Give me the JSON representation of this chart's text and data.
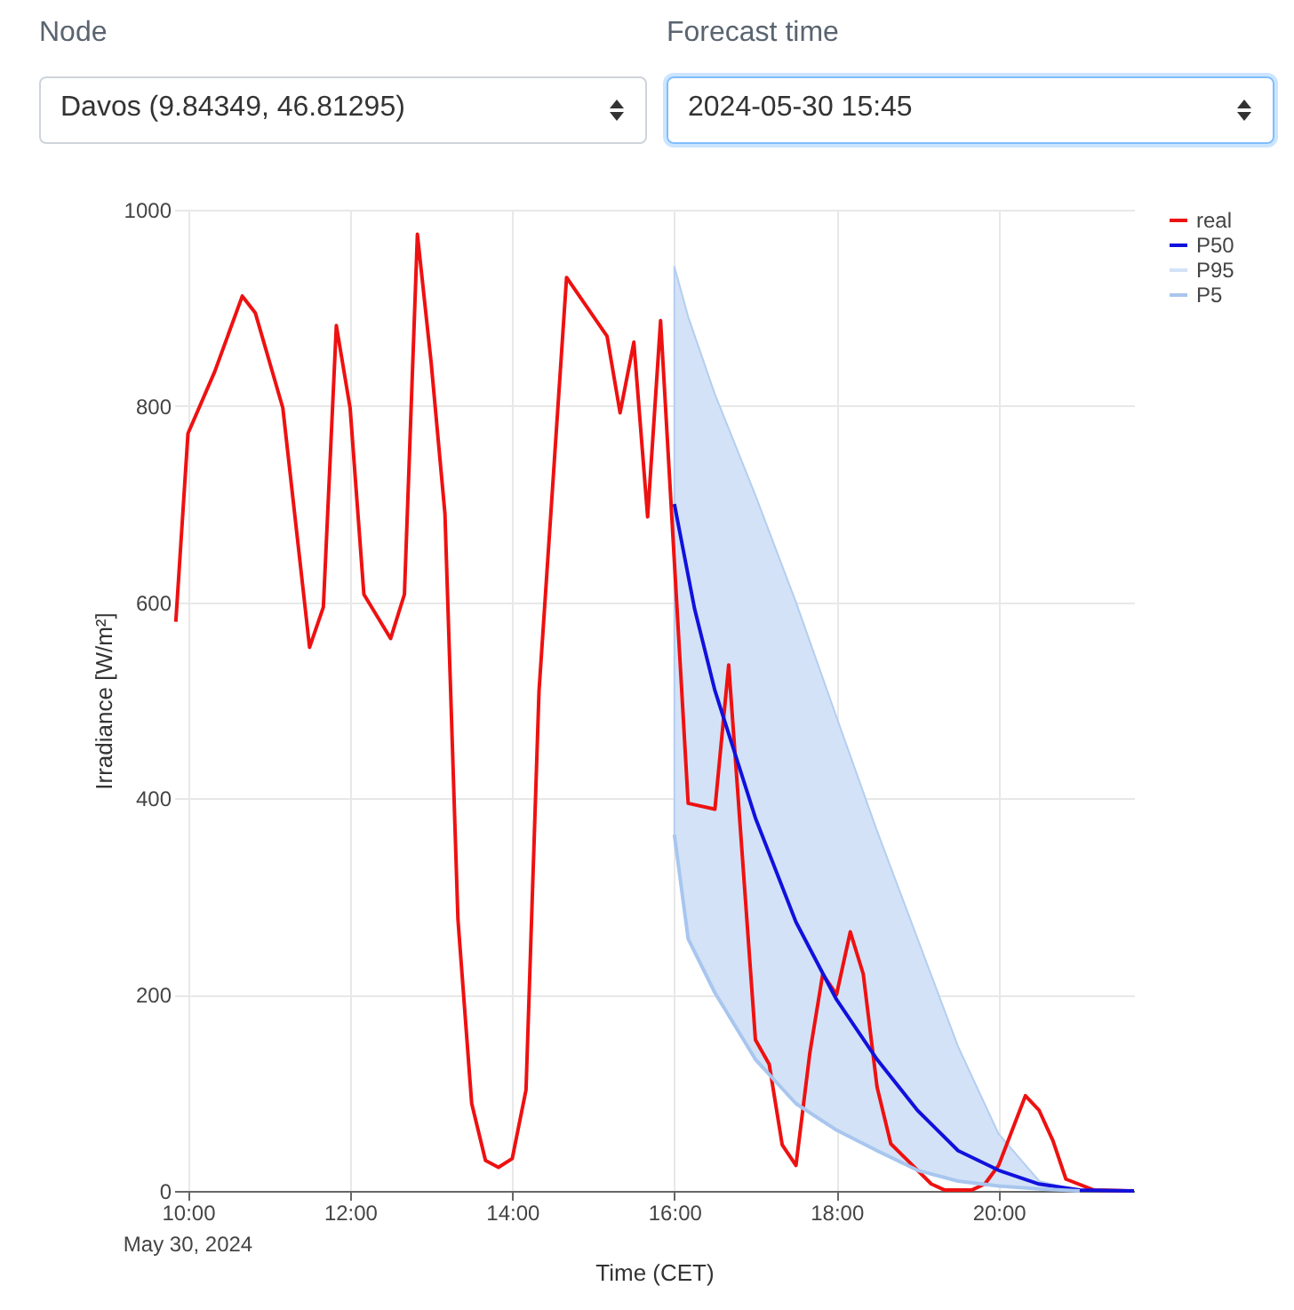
{
  "chart_data": {
    "type": "line",
    "xlabel": "Time (CET)",
    "ylabel": "Irradiance [W/m²]",
    "annotations": [
      "Node",
      "Davos (9.84349, 46.81295)",
      "Forecast time",
      "2024-05-30 15:45",
      "May 30, 2024"
    ],
    "xlim": [
      9.83,
      21.67
    ],
    "ylim": [
      0,
      1000
    ],
    "xticks": [
      {
        "value": 10,
        "label": "10:00"
      },
      {
        "value": 12,
        "label": "12:00"
      },
      {
        "value": 14,
        "label": "14:00"
      },
      {
        "value": 16,
        "label": "16:00"
      },
      {
        "value": 18,
        "label": "18:00"
      },
      {
        "value": 20,
        "label": "20:00"
      }
    ],
    "yticks": [
      0,
      200,
      400,
      600,
      800,
      1000
    ],
    "grid": true,
    "legend": "top right",
    "marker": "none",
    "line_style": "solid",
    "series": [
      {
        "name": "real",
        "color": "#ee1111",
        "x": [
          9.85,
          10.0,
          10.33,
          10.67,
          10.83,
          11.17,
          11.5,
          11.67,
          11.83,
          12.0,
          12.17,
          12.5,
          12.67,
          12.83,
          13.0,
          13.17,
          13.33,
          13.5,
          13.67,
          13.83,
          14.0,
          14.17,
          14.33,
          14.67,
          15.17,
          15.33,
          15.5,
          15.67,
          15.83,
          16.17,
          16.5,
          16.67,
          17.0,
          17.17,
          17.33,
          17.5,
          17.67,
          17.83,
          18.0,
          18.17,
          18.33,
          18.5,
          18.67,
          19.17,
          19.33,
          19.67,
          19.83,
          20.0,
          20.33,
          20.5,
          20.67,
          20.83,
          21.17,
          21.67
        ],
        "values": [
          580,
          772,
          835,
          912,
          895,
          798,
          554,
          595,
          882,
          798,
          608,
          563,
          608,
          975,
          844,
          690,
          277,
          89,
          31,
          24,
          33,
          103,
          509,
          931,
          871,
          793,
          865,
          687,
          887,
          395,
          389,
          536,
          154,
          129,
          47,
          26,
          140,
          221,
          200,
          264,
          221,
          106,
          48,
          7,
          1,
          1,
          7,
          26,
          97,
          82,
          51,
          12,
          1,
          0
        ]
      },
      {
        "name": "P50",
        "color": "#1111dd",
        "x": [
          16.0,
          16.25,
          16.5,
          17.0,
          17.5,
          18.0,
          18.5,
          19.0,
          19.5,
          20.0,
          20.5,
          21.0,
          21.67
        ],
        "values": [
          700,
          593,
          510,
          380,
          274,
          195,
          134,
          82,
          41,
          21,
          7,
          1,
          0
        ]
      },
      {
        "name": "P95",
        "type": "area",
        "color": "#d3e2f7",
        "x": [
          16.0,
          16.17,
          16.5,
          17.0,
          17.5,
          18.0,
          18.5,
          19.0,
          19.5,
          20.0,
          20.5,
          21.0
        ],
        "values": [
          942,
          891,
          812,
          709,
          600,
          483,
          367,
          257,
          147,
          58,
          10,
          0
        ]
      },
      {
        "name": "P5",
        "color": "#a8c6ee",
        "x": [
          16.0,
          16.17,
          16.5,
          17.0,
          17.5,
          18.0,
          18.5,
          19.0,
          19.5,
          20.0,
          20.5,
          21.0
        ],
        "values": [
          363,
          257,
          202,
          134,
          89,
          62,
          41,
          21,
          10,
          5,
          2,
          0
        ]
      }
    ]
  }
}
